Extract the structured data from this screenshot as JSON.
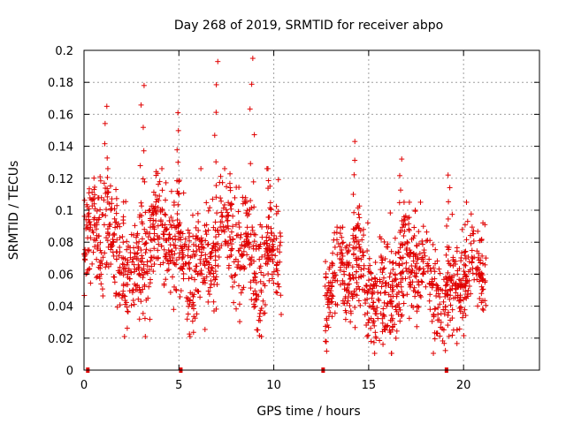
{
  "chart_data": {
    "type": "scatter",
    "title": "Day 268 of 2019, SRMTID for receiver abpo",
    "xlabel": "GPS time / hours",
    "ylabel": "SRMTID / TECUs",
    "xlim": [
      0,
      24
    ],
    "ylim": [
      0,
      0.2
    ],
    "xticks": [
      0,
      5,
      10,
      15,
      20
    ],
    "xtick_labels": [
      "0",
      "5",
      "10",
      "15",
      "20"
    ],
    "yticks": [
      0,
      0.02,
      0.04,
      0.06,
      0.08,
      0.1,
      0.12,
      0.14,
      0.16,
      0.18,
      0.2
    ],
    "ytick_labels": [
      "0",
      "0.02",
      "0.04",
      "0.06",
      "0.08",
      "0.1",
      "0.12",
      "0.14",
      "0.16",
      "0.18",
      "0.2"
    ],
    "grid": true,
    "marker": "plus",
    "color": "#e00000",
    "series": [
      {
        "name": "SRMTID",
        "segments": [
          {
            "x_range": [
              0,
              10.4
            ],
            "typical_range": [
              0.03,
              0.12
            ],
            "mean": 0.075,
            "peak_values": [
              0.165,
              0.178,
              0.161,
              0.193,
              0.195
            ]
          },
          {
            "x_range": [
              12.7,
              21.2
            ],
            "typical_range": [
              0.015,
              0.1
            ],
            "mean": 0.055,
            "peak_values": [
              0.143,
              0.132,
              0.122
            ]
          }
        ]
      }
    ],
    "zero_markers_x": [
      0.2,
      5.1,
      12.6,
      19.1
    ]
  }
}
